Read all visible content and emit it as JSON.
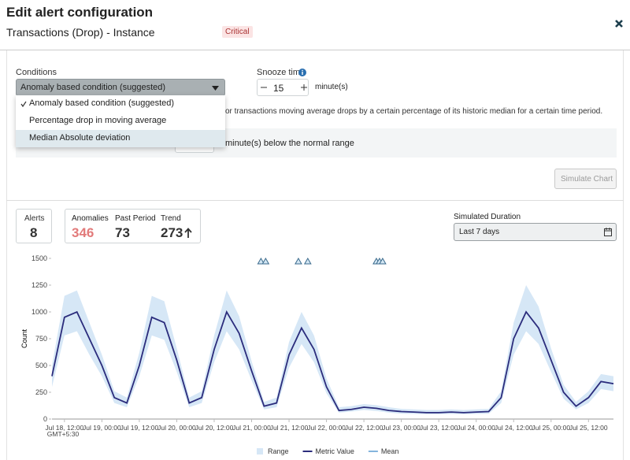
{
  "header": {
    "title": "Edit alert configuration",
    "subtitle": "Transactions (Drop) - Instance",
    "severity": "Critical"
  },
  "form": {
    "conditions_label": "Conditions",
    "condition_selected": "Anomaly based condition (suggested)",
    "condition_options": [
      "Anomaly based condition (suggested)",
      "Percentage drop in moving average",
      "Median Absolute deviation"
    ],
    "description": "or transactions moving average drops by a certain percentage of its historic median for a certain time period.",
    "threshold_suffix": "minute(s) below the normal range",
    "snooze_label": "Snooze time",
    "snooze_value": 15,
    "snooze_unit": "minute(s)",
    "simulate_button": "Simulate Chart"
  },
  "stats": {
    "alerts_label": "Alerts",
    "alerts": 8,
    "anomalies_label": "Anomalies",
    "anomalies": 346,
    "past_period_label": "Past Period",
    "past_period": 73,
    "trend_label": "Trend",
    "trend": 273
  },
  "duration": {
    "label": "Simulated Duration",
    "value": "Last 7 days"
  },
  "chart_data": {
    "type": "line",
    "y_label": "Count",
    "timezone": "GMT+5:30",
    "legend": "bottom",
    "x": [
      "Jul 18, 08:00",
      "Jul 18, 12:00",
      "Jul 18, 16:00",
      "Jul 18, 20:00",
      "Jul 19, 00:00",
      "Jul 19, 04:00",
      "Jul 19, 08:00",
      "Jul 19, 12:00",
      "Jul 19, 16:00",
      "Jul 19, 20:00",
      "Jul 20, 00:00",
      "Jul 20, 04:00",
      "Jul 20, 08:00",
      "Jul 20, 12:00",
      "Jul 20, 16:00",
      "Jul 20, 20:00",
      "Jul 21, 00:00",
      "Jul 21, 04:00",
      "Jul 21, 08:00",
      "Jul 21, 12:00",
      "Jul 21, 16:00",
      "Jul 21, 20:00",
      "Jul 22, 00:00",
      "Jul 22, 04:00",
      "Jul 22, 08:00",
      "Jul 22, 12:00",
      "Jul 22, 16:00",
      "Jul 22, 20:00",
      "Jul 23, 00:00",
      "Jul 23, 04:00",
      "Jul 23, 08:00",
      "Jul 23, 12:00",
      "Jul 23, 16:00",
      "Jul 23, 20:00",
      "Jul 24, 00:00",
      "Jul 24, 04:00",
      "Jul 24, 08:00",
      "Jul 24, 12:00",
      "Jul 24, 16:00",
      "Jul 24, 20:00",
      "Jul 25, 00:00",
      "Jul 25, 04:00",
      "Jul 25, 08:00",
      "Jul 25, 12:00",
      "Jul 25, 16:00",
      "Jul 25, 20:00"
    ],
    "xlim": [
      "Jul 18, 08:00",
      "Jul 25, 20:00"
    ],
    "xticks": [
      "Jul 18, 12:00",
      "Jul 19, 00:00",
      "Jul 19, 12:00",
      "Jul 20, 00:00",
      "Jul 20, 12:00",
      "Jul 21, 00:00",
      "Jul 21, 12:00",
      "Jul 22, 00:00",
      "Jul 22, 12:00",
      "Jul 23, 00:00",
      "Jul 23, 12:00",
      "Jul 24, 00:00",
      "Jul 24, 12:00",
      "Jul 25, 00:00",
      "Jul 25, 12:00"
    ],
    "ylim": [
      0,
      1500
    ],
    "yticks": [
      0,
      250,
      500,
      750,
      1000,
      1250,
      1500
    ],
    "series": [
      {
        "name": "Range",
        "color": "#d6e7f6",
        "upper": [
          500,
          1150,
          1200,
          900,
          600,
          260,
          200,
          620,
          1150,
          1100,
          660,
          200,
          260,
          780,
          1200,
          960,
          540,
          160,
          200,
          720,
          1000,
          780,
          380,
          110,
          120,
          140,
          130,
          110,
          95,
          90,
          85,
          85,
          90,
          85,
          90,
          95,
          260,
          900,
          1250,
          1050,
          660,
          320,
          160,
          260,
          420,
          400
        ],
        "lower": [
          300,
          780,
          820,
          600,
          400,
          150,
          110,
          400,
          780,
          740,
          440,
          110,
          150,
          530,
          820,
          650,
          360,
          90,
          110,
          480,
          700,
          530,
          240,
          60,
          70,
          85,
          75,
          60,
          50,
          48,
          45,
          45,
          48,
          45,
          48,
          50,
          150,
          600,
          820,
          700,
          440,
          190,
          90,
          150,
          280,
          260
        ]
      },
      {
        "name": "Metric Value",
        "color": "#2b2c7c",
        "values": [
          400,
          950,
          1000,
          750,
          500,
          200,
          150,
          500,
          950,
          900,
          550,
          150,
          200,
          650,
          1000,
          800,
          450,
          120,
          150,
          600,
          850,
          650,
          300,
          80,
          90,
          110,
          100,
          80,
          70,
          65,
          60,
          60,
          65,
          60,
          65,
          70,
          200,
          750,
          1000,
          850,
          550,
          250,
          120,
          200,
          350,
          330
        ]
      },
      {
        "name": "Mean",
        "color": "#84b5dd",
        "values": [
          400,
          950,
          1000,
          750,
          500,
          200,
          150,
          500,
          950,
          900,
          550,
          150,
          200,
          650,
          1000,
          800,
          450,
          120,
          150,
          600,
          850,
          650,
          300,
          80,
          90,
          110,
          100,
          80,
          70,
          65,
          60,
          60,
          65,
          60,
          65,
          70,
          200,
          750,
          1000,
          850,
          550,
          250,
          120,
          200,
          350,
          330
        ]
      }
    ],
    "anomalies": [
      "Jul 21, 03:00",
      "Jul 21, 04:30",
      "Jul 21, 15:00",
      "Jul 21, 18:00",
      "Jul 22, 16:00",
      "Jul 22, 17:00",
      "Jul 22, 18:00"
    ]
  }
}
